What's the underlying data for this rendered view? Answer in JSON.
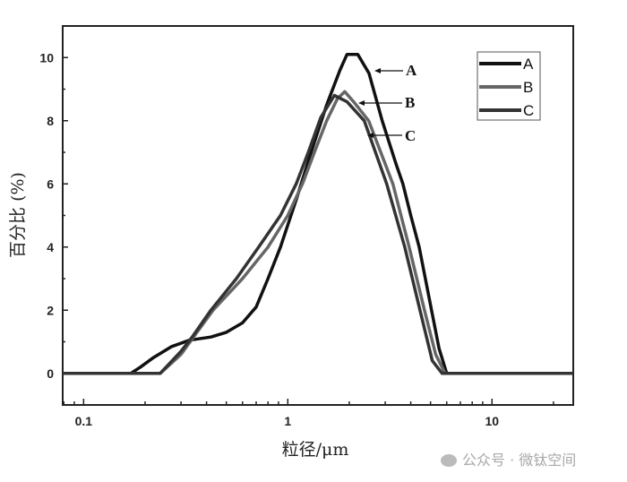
{
  "chart_data": {
    "type": "line",
    "title": "",
    "xlabel": "粒径/μm",
    "ylabel": "百分比 (%)",
    "xscale": "log",
    "xlim": [
      0.079,
      25
    ],
    "ylim": [
      -1,
      11
    ],
    "xticks": [
      0.1,
      1,
      10
    ],
    "xtick_labels": [
      "0.1",
      "1",
      "10"
    ],
    "yticks": [
      0,
      2,
      4,
      6,
      8,
      10
    ],
    "ytick_labels": [
      "0",
      "2",
      "4",
      "6",
      "8",
      "10"
    ],
    "grid": false,
    "legend_position": "top-right",
    "series": [
      {
        "name": "A",
        "color": "#111111",
        "x": [
          0.079,
          0.17,
          0.19,
          0.22,
          0.27,
          0.33,
          0.42,
          0.5,
          0.6,
          0.7,
          0.8,
          0.92,
          1.1,
          1.3,
          1.55,
          1.8,
          1.95,
          2.2,
          2.5,
          2.9,
          3.4,
          3.66,
          4.0,
          4.4,
          5.06,
          5.5,
          6.0,
          25
        ],
        "y": [
          0,
          0,
          0.2,
          0.5,
          0.85,
          1.05,
          1.15,
          1.3,
          1.6,
          2.1,
          3.0,
          4.0,
          5.5,
          7.0,
          8.5,
          9.6,
          10.1,
          10.1,
          9.5,
          8.0,
          6.6,
          6.0,
          5.0,
          4.0,
          2.0,
          0.8,
          0,
          0
        ]
      },
      {
        "name": "B",
        "color": "#666666",
        "x": [
          0.079,
          0.237,
          0.3,
          0.35,
          0.43,
          0.6,
          0.8,
          1.0,
          1.18,
          1.35,
          1.55,
          1.75,
          1.9,
          2.1,
          2.49,
          3.27,
          3.93,
          4.67,
          5.3,
          5.9,
          25
        ],
        "y": [
          0,
          0,
          0.6,
          1.2,
          2.0,
          3.0,
          4.0,
          5.0,
          6.0,
          7.0,
          8.0,
          8.7,
          8.92,
          8.6,
          8.0,
          6.0,
          4.0,
          2.0,
          0.6,
          0,
          0
        ]
      },
      {
        "name": "C",
        "color": "#333333",
        "x": [
          0.079,
          0.237,
          0.3,
          0.34,
          0.42,
          0.56,
          0.72,
          0.92,
          1.1,
          1.26,
          1.45,
          1.69,
          1.95,
          2.37,
          3.05,
          3.74,
          4.44,
          5.1,
          5.7,
          25
        ],
        "y": [
          0,
          0,
          0.7,
          1.15,
          2.0,
          3.0,
          4.0,
          5.0,
          6.0,
          7.0,
          8.1,
          8.8,
          8.6,
          8.0,
          6.0,
          4.0,
          2.0,
          0.4,
          0,
          0
        ]
      }
    ],
    "annotations": [
      {
        "text": "A",
        "target_series": "A"
      },
      {
        "text": "B",
        "target_series": "B"
      },
      {
        "text": "C",
        "target_series": "C"
      }
    ]
  },
  "watermark": {
    "text": "公众号 · 微钛空间",
    "icon": "wechat-icon"
  }
}
